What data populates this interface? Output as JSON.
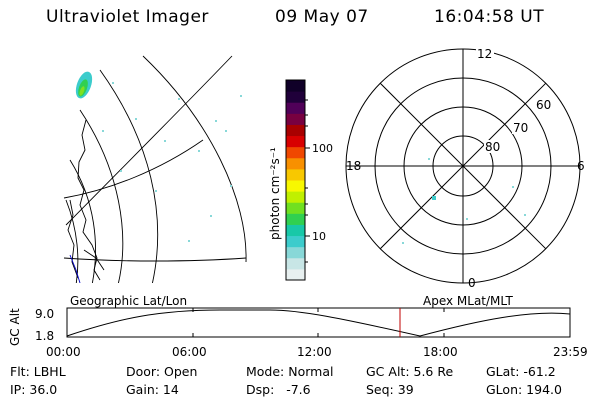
{
  "header": {
    "instrument": "Ultraviolet Imager",
    "date": "09 May 07",
    "time": "16:04:58 UT"
  },
  "colorbar": {
    "label": "photon cm⁻²s⁻¹",
    "ticks": [
      "100",
      "10"
    ],
    "colors": [
      "#e8f0f0",
      "#c8e6e6",
      "#88d8d8",
      "#3ccccc",
      "#18c8a8",
      "#30d050",
      "#70e020",
      "#c0f000",
      "#f8f800",
      "#f8c800",
      "#f89000",
      "#f04800",
      "#d80000",
      "#a80000",
      "#780040",
      "#500058",
      "#20003a",
      "#100028"
    ]
  },
  "polar": {
    "clock_labels": [
      "12",
      "18",
      "6",
      "0"
    ],
    "lat_labels": [
      "60",
      "70",
      "80"
    ]
  },
  "timeline": {
    "left_title": "Geographic Lat/Lon",
    "right_title": "Apex MLat/MLT",
    "y_axis_label": "GC Alt",
    "y_ticks": [
      "9.0",
      "1.8"
    ],
    "x_ticks": [
      "00:00",
      "06:00",
      "12:00",
      "18:00",
      "23:59"
    ],
    "current_time_color": "#c00000"
  },
  "info": {
    "filter": "Flt: LBHL",
    "door": "Door: Open",
    "mode": "Mode: Normal",
    "gc_alt": "GC Alt: 5.6 Re",
    "glat": "GLat: -61.2",
    "ip": "IP: 36.0",
    "gain": "Gain: 14",
    "dsp": "Dsp:   -7.6",
    "seq": "Seq: 39",
    "glon": "GLon: 194.0"
  }
}
